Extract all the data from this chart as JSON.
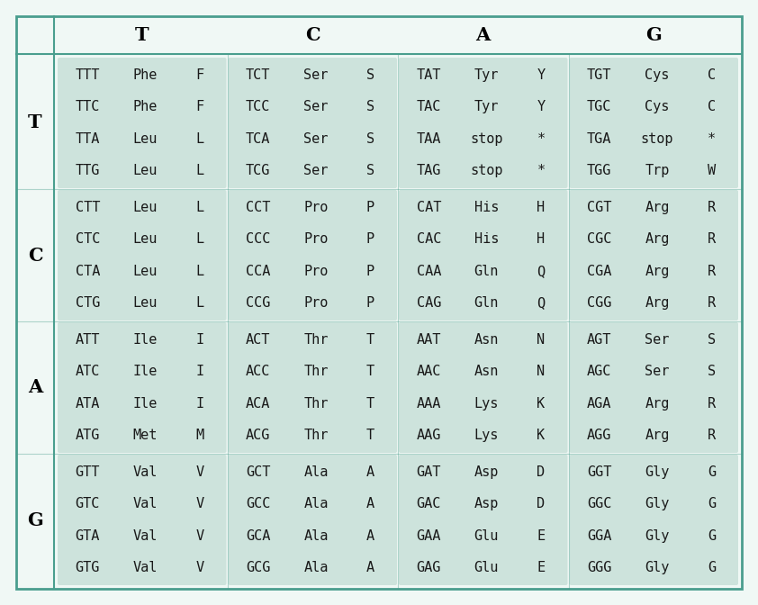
{
  "col_headers": [
    "T",
    "C",
    "A",
    "G"
  ],
  "row_headers": [
    "T",
    "C",
    "A",
    "G"
  ],
  "cell_bg_color": "#cde3dc",
  "outer_bg_color": "#f0f8f5",
  "border_color": "#4a9e8e",
  "header_color": "#000000",
  "text_color": "#1a1a1a",
  "cells": [
    [
      [
        [
          "TTT",
          "Phe",
          "F"
        ],
        [
          "TTC",
          "Phe",
          "F"
        ],
        [
          "TTA",
          "Leu",
          "L"
        ],
        [
          "TTG",
          "Leu",
          "L"
        ]
      ],
      [
        [
          "TCT",
          "Ser",
          "S"
        ],
        [
          "TCC",
          "Ser",
          "S"
        ],
        [
          "TCA",
          "Ser",
          "S"
        ],
        [
          "TCG",
          "Ser",
          "S"
        ]
      ],
      [
        [
          "TAT",
          "Tyr",
          "Y"
        ],
        [
          "TAC",
          "Tyr",
          "Y"
        ],
        [
          "TAA",
          "stop",
          "*"
        ],
        [
          "TAG",
          "stop",
          "*"
        ]
      ],
      [
        [
          "TGT",
          "Cys",
          "C"
        ],
        [
          "TGC",
          "Cys",
          "C"
        ],
        [
          "TGA",
          "stop",
          "*"
        ],
        [
          "TGG",
          "Trp",
          "W"
        ]
      ]
    ],
    [
      [
        [
          "CTT",
          "Leu",
          "L"
        ],
        [
          "CTC",
          "Leu",
          "L"
        ],
        [
          "CTA",
          "Leu",
          "L"
        ],
        [
          "CTG",
          "Leu",
          "L"
        ]
      ],
      [
        [
          "CCT",
          "Pro",
          "P"
        ],
        [
          "CCC",
          "Pro",
          "P"
        ],
        [
          "CCA",
          "Pro",
          "P"
        ],
        [
          "CCG",
          "Pro",
          "P"
        ]
      ],
      [
        [
          "CAT",
          "His",
          "H"
        ],
        [
          "CAC",
          "His",
          "H"
        ],
        [
          "CAA",
          "Gln",
          "Q"
        ],
        [
          "CAG",
          "Gln",
          "Q"
        ]
      ],
      [
        [
          "CGT",
          "Arg",
          "R"
        ],
        [
          "CGC",
          "Arg",
          "R"
        ],
        [
          "CGA",
          "Arg",
          "R"
        ],
        [
          "CGG",
          "Arg",
          "R"
        ]
      ]
    ],
    [
      [
        [
          "ATT",
          "Ile",
          "I"
        ],
        [
          "ATC",
          "Ile",
          "I"
        ],
        [
          "ATA",
          "Ile",
          "I"
        ],
        [
          "ATG",
          "Met",
          "M"
        ]
      ],
      [
        [
          "ACT",
          "Thr",
          "T"
        ],
        [
          "ACC",
          "Thr",
          "T"
        ],
        [
          "ACA",
          "Thr",
          "T"
        ],
        [
          "ACG",
          "Thr",
          "T"
        ]
      ],
      [
        [
          "AAT",
          "Asn",
          "N"
        ],
        [
          "AAC",
          "Asn",
          "N"
        ],
        [
          "AAA",
          "Lys",
          "K"
        ],
        [
          "AAG",
          "Lys",
          "K"
        ]
      ],
      [
        [
          "AGT",
          "Ser",
          "S"
        ],
        [
          "AGC",
          "Ser",
          "S"
        ],
        [
          "AGA",
          "Arg",
          "R"
        ],
        [
          "AGG",
          "Arg",
          "R"
        ]
      ]
    ],
    [
      [
        [
          "GTT",
          "Val",
          "V"
        ],
        [
          "GTC",
          "Val",
          "V"
        ],
        [
          "GTA",
          "Val",
          "V"
        ],
        [
          "GTG",
          "Val",
          "V"
        ]
      ],
      [
        [
          "GCT",
          "Ala",
          "A"
        ],
        [
          "GCC",
          "Ala",
          "A"
        ],
        [
          "GCA",
          "Ala",
          "A"
        ],
        [
          "GCG",
          "Ala",
          "A"
        ]
      ],
      [
        [
          "GAT",
          "Asp",
          "D"
        ],
        [
          "GAC",
          "Asp",
          "D"
        ],
        [
          "GAA",
          "Glu",
          "E"
        ],
        [
          "GAG",
          "Glu",
          "E"
        ]
      ],
      [
        [
          "GGT",
          "Gly",
          "G"
        ],
        [
          "GGC",
          "Gly",
          "G"
        ],
        [
          "GGA",
          "Gly",
          "G"
        ],
        [
          "GGG",
          "Gly",
          "G"
        ]
      ]
    ]
  ],
  "fig_width": 8.42,
  "fig_height": 6.72,
  "dpi": 100
}
